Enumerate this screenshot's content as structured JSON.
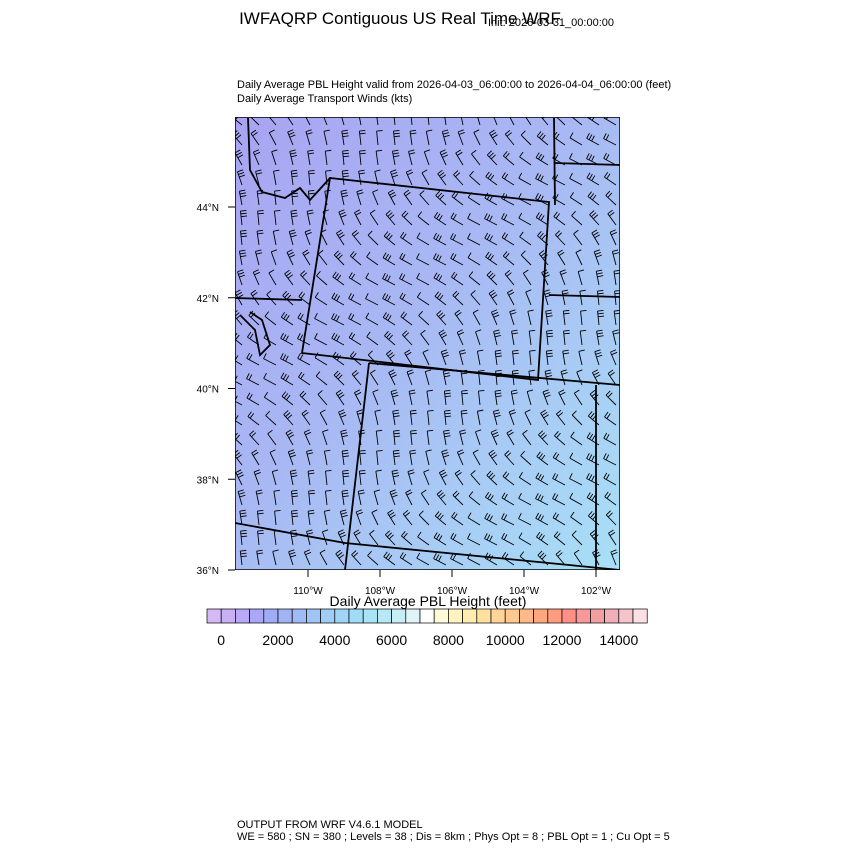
{
  "header": {
    "title": "IWFAQRP Contiguous US Real Time WRF",
    "init": "Init: 2026-03-31_00:00:00",
    "subtitle_lines": [
      "Daily Average PBL Height valid from 2026-04-03_06:00:00 to 2026-04-04_06:00:00   (feet)",
      "Daily Average Transport Winds   (kts)"
    ]
  },
  "map": {
    "lat_ticks": [
      {
        "value": 36,
        "label": "36°N"
      },
      {
        "value": 38,
        "label": "38°N"
      },
      {
        "value": 40,
        "label": "40°N"
      },
      {
        "value": 42,
        "label": "42°N"
      },
      {
        "value": 44,
        "label": "44°N"
      }
    ],
    "lon_ticks": [
      {
        "value": -110,
        "label": "110°W"
      },
      {
        "value": -108,
        "label": "108°W"
      },
      {
        "value": -106,
        "label": "106°W"
      },
      {
        "value": -104,
        "label": "104°W"
      },
      {
        "value": -102,
        "label": "102°W"
      }
    ]
  },
  "colorbar": {
    "title": "Daily Average PBL Height  (feet)",
    "ticks": [
      0,
      2000,
      4000,
      6000,
      8000,
      10000,
      12000,
      14000
    ],
    "colors": [
      "#d6b8f5",
      "#c8b0f5",
      "#b8a8f5",
      "#a8a8f5",
      "#a0acf5",
      "#a0b4f5",
      "#a0bcf5",
      "#a0c4f5",
      "#a0ccf5",
      "#a0d4f5",
      "#a0dcf5",
      "#a8e4f5",
      "#b8e8f5",
      "#c8eef5",
      "#e0f4f8",
      "#ffffff",
      "#fffad8",
      "#fff4c0",
      "#ffecb0",
      "#ffe0a0",
      "#ffd498",
      "#ffc890",
      "#ffb888",
      "#ffa880",
      "#ff9c80",
      "#ff9088",
      "#f89898",
      "#f0a0a0",
      "#f0b0b8",
      "#f4c4cc",
      "#fce0e4"
    ]
  },
  "footer": {
    "lines": [
      "OUTPUT FROM WRF V4.6.1 MODEL",
      "WE = 580 ; SN = 380 ; Levels = 38 ; Dis = 8km ; Phys Opt = 8 ; PBL Opt = 1 ; Cu Opt = 5"
    ]
  }
}
